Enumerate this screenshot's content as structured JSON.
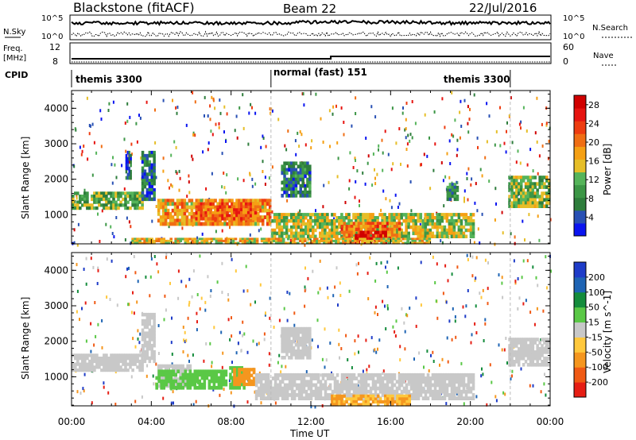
{
  "header": {
    "station": "Blackstone (fitACF)",
    "beam": "Beam 22",
    "date": "22/Jul/2016"
  },
  "summary": {
    "nsky_label": "N.Sky",
    "nsearch_label": "N.Search",
    "freq_label_1": "Freq.",
    "freq_label_2": "[MHz]",
    "nave_label": "Nave",
    "cpid_label": "CPID",
    "nsky_ticks": [
      "10^5",
      "10^0"
    ],
    "nsearch_ticks": [
      "10^5",
      "10^0"
    ],
    "freq_ticks": [
      "12",
      "8"
    ],
    "nave_ticks": [
      "60",
      "0"
    ],
    "cpid_segments": [
      {
        "label": "themis 3300",
        "start": 0,
        "end": 10
      },
      {
        "label": "normal (fast) 151",
        "start": 10,
        "end": 22
      },
      {
        "label": "themis 3300",
        "start": 22,
        "end": 24
      }
    ]
  },
  "axes": {
    "ylabel": "Slant Range [km]",
    "xlabel": "Time UT",
    "x_ticks": [
      "00:00",
      "04:00",
      "08:00",
      "12:00",
      "16:00",
      "20:00",
      "00:00"
    ],
    "y_ticks": [
      "1000",
      "2000",
      "3000",
      "4000"
    ]
  },
  "colors": {
    "power": [
      "#0a14f0",
      "#2850b4",
      "#2e7d3c",
      "#3c9646",
      "#55b45a",
      "#e6be28",
      "#f5a014",
      "#f06e14",
      "#ee3c10",
      "#e61410",
      "#d00000"
    ],
    "velocity": [
      "#e61e14",
      "#f05a14",
      "#f5961e",
      "#ffc83c",
      "#c8c8c8",
      "#5ac846",
      "#148c3c",
      "#1e64b4",
      "#1e3cc8"
    ]
  },
  "chart_data": [
    {
      "type": "heatmap",
      "panel": "power",
      "ylabel": "Slant Range [km]",
      "xlim": [
        0,
        24
      ],
      "ylim": [
        180,
        4500
      ],
      "x_unit": "hours UT",
      "colorbar": {
        "label": "Power [dB]",
        "ticks": [
          "4",
          "8",
          "12",
          "16",
          "20",
          "24",
          "28"
        ],
        "range": [
          0,
          30
        ]
      },
      "regions": [
        {
          "t0": 0.0,
          "t1": 3.6,
          "r0": 1150,
          "r1": 1650,
          "level": 11
        },
        {
          "t0": 3.5,
          "t1": 4.2,
          "r0": 1400,
          "r1": 2800,
          "level": 6
        },
        {
          "t0": 2.7,
          "t1": 3.0,
          "r0": 2000,
          "r1": 2800,
          "level": 5
        },
        {
          "t0": 4.3,
          "t1": 10.0,
          "r0": 700,
          "r1": 1450,
          "level": 18
        },
        {
          "t0": 6.2,
          "t1": 9.4,
          "r0": 850,
          "r1": 1350,
          "level": 22
        },
        {
          "t0": 10.0,
          "t1": 20.2,
          "r0": 350,
          "r1": 1050,
          "level": 14
        },
        {
          "t0": 10.5,
          "t1": 12.0,
          "r0": 1500,
          "r1": 2500,
          "level": 7
        },
        {
          "t0": 13.5,
          "t1": 16.5,
          "r0": 300,
          "r1": 800,
          "level": 20
        },
        {
          "t0": 14.2,
          "t1": 15.8,
          "r0": 180,
          "r1": 550,
          "level": 28
        },
        {
          "t0": 3.0,
          "t1": 18.0,
          "r0": 180,
          "r1": 350,
          "level": 16
        },
        {
          "t0": 18.8,
          "t1": 19.4,
          "r0": 1400,
          "r1": 1900,
          "level": 8
        },
        {
          "t0": 21.9,
          "t1": 24.0,
          "r0": 1200,
          "r1": 2100,
          "level": 12
        }
      ]
    },
    {
      "type": "heatmap",
      "panel": "velocity",
      "ylabel": "Slant Range [km]",
      "xlabel": "Time UT",
      "xlim": [
        0,
        24
      ],
      "ylim": [
        180,
        4500
      ],
      "x_unit": "hours UT",
      "colorbar": {
        "label": "Velocity [m s^-1]",
        "ticks": [
          "-200",
          "-100",
          "-50",
          "-15",
          "15",
          "50",
          "100",
          "200"
        ],
        "range": [
          -250,
          250
        ]
      },
      "regions": [
        {
          "t0": 0.0,
          "t1": 3.6,
          "r0": 1150,
          "r1": 1650,
          "vel": 0
        },
        {
          "t0": 3.5,
          "t1": 4.2,
          "r0": 1400,
          "r1": 2800,
          "vel": 0
        },
        {
          "t0": 4.3,
          "t1": 6.0,
          "r0": 700,
          "r1": 1350,
          "vel": 0
        },
        {
          "t0": 4.2,
          "t1": 7.8,
          "r0": 650,
          "r1": 1200,
          "vel": 35
        },
        {
          "t0": 7.9,
          "t1": 8.7,
          "r0": 650,
          "r1": 1300,
          "vel": 35
        },
        {
          "t0": 8.1,
          "t1": 9.2,
          "r0": 750,
          "r1": 1250,
          "vel": -60
        },
        {
          "t0": 9.2,
          "t1": 20.2,
          "r0": 350,
          "r1": 1100,
          "vel": 0
        },
        {
          "t0": 13.0,
          "t1": 17.0,
          "r0": 180,
          "r1": 500,
          "vel": -50
        },
        {
          "t0": 10.5,
          "t1": 12.0,
          "r0": 1500,
          "r1": 2400,
          "vel": 0
        },
        {
          "t0": 21.9,
          "t1": 24.0,
          "r0": 1300,
          "r1": 2100,
          "vel": 0
        }
      ]
    }
  ]
}
